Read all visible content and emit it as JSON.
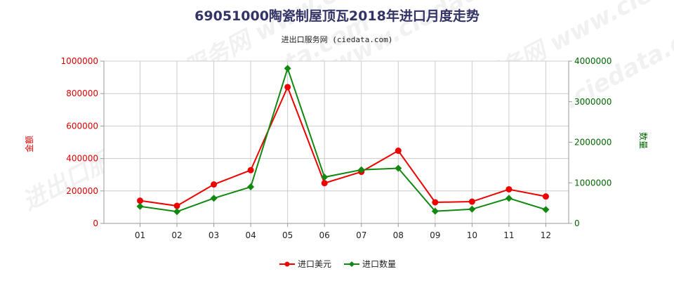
{
  "chart_data": {
    "type": "line",
    "title": "69051000陶瓷制屋顶瓦2018年进口月度走势",
    "subtitle": "进出口服务网 (ciedata.com)",
    "watermark": "进出口服务网 www.ciedata.com",
    "categories": [
      "01",
      "02",
      "03",
      "04",
      "05",
      "06",
      "07",
      "08",
      "09",
      "10",
      "11",
      "12"
    ],
    "left_axis": {
      "label": "金额",
      "range": [
        0,
        1000000
      ],
      "ticks": [
        "0",
        "200000",
        "400000",
        "600000",
        "800000",
        "1000000"
      ],
      "color": "#dd0000"
    },
    "right_axis": {
      "label": "数量",
      "range": [
        0,
        4000000
      ],
      "ticks": [
        "0",
        "1000000",
        "2000000",
        "3000000",
        "4000000"
      ],
      "color": "#006600"
    },
    "series": [
      {
        "name": "进口美元",
        "axis": "left",
        "color": "#ee0000",
        "values": [
          140000,
          108000,
          240000,
          328000,
          840000,
          248000,
          318000,
          448000,
          130000,
          134000,
          210000,
          166000
        ]
      },
      {
        "name": "进口数量",
        "axis": "right",
        "color": "#118811",
        "values": [
          420000,
          290000,
          620000,
          900000,
          3820000,
          1140000,
          1320000,
          1360000,
          300000,
          350000,
          620000,
          340000
        ]
      }
    ],
    "grid": true,
    "legend_position": "bottom-center"
  }
}
